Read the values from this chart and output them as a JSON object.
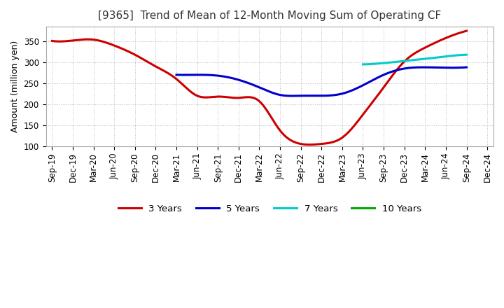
{
  "title": "[9365]  Trend of Mean of 12-Month Moving Sum of Operating CF",
  "ylabel": "Amount (million yen)",
  "ylim": [
    100,
    385
  ],
  "yticks": [
    100,
    150,
    200,
    250,
    300,
    350
  ],
  "background_color": "#ffffff",
  "grid_color": "#bbbbbb",
  "x_labels": [
    "Sep-19",
    "Dec-19",
    "Mar-20",
    "Jun-20",
    "Sep-20",
    "Dec-20",
    "Mar-21",
    "Jun-21",
    "Sep-21",
    "Dec-21",
    "Mar-22",
    "Jun-22",
    "Sep-22",
    "Dec-22",
    "Mar-23",
    "Jun-23",
    "Sep-23",
    "Dec-23",
    "Mar-24",
    "Jun-24",
    "Sep-24",
    "Dec-24"
  ],
  "series": {
    "3 Years": {
      "color": "#cc0000",
      "linewidth": 2.2,
      "data_x": [
        0,
        1,
        2,
        3,
        4,
        5,
        6,
        7,
        8,
        9,
        10,
        11,
        12,
        13,
        14,
        15,
        16,
        17,
        18,
        19,
        20
      ],
      "data_y": [
        351,
        352,
        354,
        340,
        318,
        290,
        260,
        220,
        218,
        215,
        207,
        137,
        105,
        105,
        120,
        175,
        240,
        302,
        335,
        358,
        375
      ]
    },
    "5 Years": {
      "color": "#0000cc",
      "linewidth": 2.2,
      "data_x": [
        6,
        7,
        8,
        9,
        10,
        11,
        12,
        13,
        14,
        15,
        16,
        17,
        18,
        19,
        20
      ],
      "data_y": [
        270,
        270,
        268,
        258,
        240,
        222,
        220,
        220,
        225,
        245,
        270,
        285,
        288,
        287,
        288
      ]
    },
    "7 Years": {
      "color": "#00cccc",
      "linewidth": 2.2,
      "data_x": [
        15,
        16,
        17,
        18,
        19,
        20
      ],
      "data_y": [
        295,
        298,
        303,
        308,
        314,
        318
      ]
    },
    "10 Years": {
      "color": "#00aa00",
      "linewidth": 2.2,
      "data_x": [],
      "data_y": []
    }
  },
  "legend_order": [
    "3 Years",
    "5 Years",
    "7 Years",
    "10 Years"
  ],
  "title_color": "#333333",
  "title_fontsize": 11,
  "tick_fontsize": 8.5,
  "ylabel_fontsize": 9
}
